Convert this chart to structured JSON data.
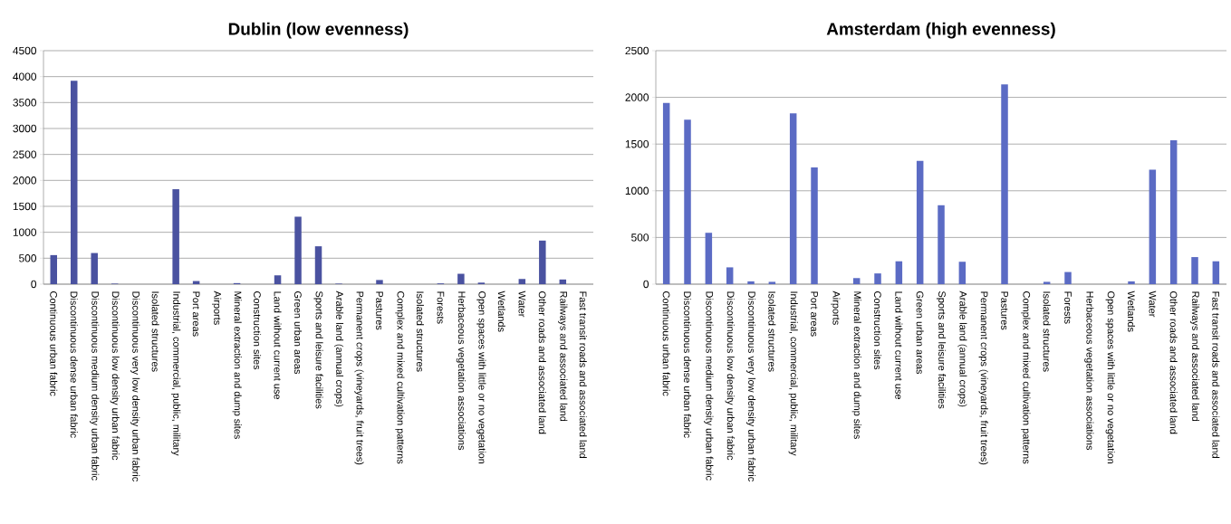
{
  "chart_data": [
    {
      "type": "bar",
      "title": "Dublin (low evenness)",
      "categories": [
        "Continuous urban fabric",
        "Discontinuous dense urban fabric",
        "Discontinuous medium density urban fabric",
        "Discontinuous low density urban fabric",
        "Discontinuous very low density urban fabric",
        "Isolated structures",
        "Industrial, commercial, public, military",
        "Port areas",
        "Airports",
        "Mineral extraction and dump sites",
        "Construction sites",
        "Land without current use",
        "Green urban areas",
        "Sports and leisure facilities",
        "Arable land (annual crops)",
        "Permanent crops (vineyards, fruit trees)",
        "Pastures",
        "Complex and mixed cultivation patterns",
        "Isolated structures",
        "Forests",
        "Herbaceous vegetation associations",
        "Open spaces with little or no vegetation",
        "Wetlands",
        "Water",
        "Other roads and associated land",
        "Railways and associated land",
        "Fast transit roads and associated land"
      ],
      "values": [
        560,
        3920,
        600,
        10,
        0,
        0,
        1830,
        60,
        0,
        20,
        0,
        170,
        1300,
        730,
        10,
        0,
        80,
        0,
        0,
        15,
        200,
        30,
        0,
        100,
        840,
        90,
        0
      ],
      "color": "#4a52a0",
      "ylim": [
        0,
        4500
      ],
      "yticks": [
        0,
        500,
        1000,
        1500,
        2000,
        2500,
        3000,
        3500,
        4000,
        4500
      ],
      "grid": "y"
    },
    {
      "type": "bar",
      "title": "Amsterdam (high evenness)",
      "categories": [
        "Continuous urban fabric",
        "Discontinuous dense urban fabric",
        "Discontinuous medium density urban fabric",
        "Discontinuous low density urban fabric",
        "Discontinuous very low density urban fabric",
        "Isolated structures",
        "Industrial, commercial, public, military",
        "Port areas",
        "Airports",
        "Mineral extraction and dump sites",
        "Construction sites",
        "Land without current use",
        "Green urban areas",
        "Sports and leisure facilities",
        "Arable land (annual crops)",
        "Permanent crops (vineyards, fruit trees)",
        "Pastures",
        "Complex and mixed cultivation patterns",
        "Isolated structures",
        "Forests",
        "Herbaceous vegetation associations",
        "Open spaces with little or no vegetation",
        "Wetlands",
        "Water",
        "Other roads and associated land",
        "Railways and associated land",
        "Fast transit roads and associated land"
      ],
      "values": [
        1940,
        1760,
        550,
        180,
        30,
        25,
        1830,
        1250,
        0,
        65,
        115,
        245,
        1320,
        845,
        240,
        0,
        2140,
        0,
        25,
        130,
        0,
        0,
        30,
        1225,
        1540,
        290,
        245
      ],
      "color": "#5b6bc4",
      "ylim": [
        0,
        2500
      ],
      "yticks": [
        0,
        500,
        1000,
        1500,
        2000,
        2500
      ],
      "grid": "y"
    }
  ]
}
